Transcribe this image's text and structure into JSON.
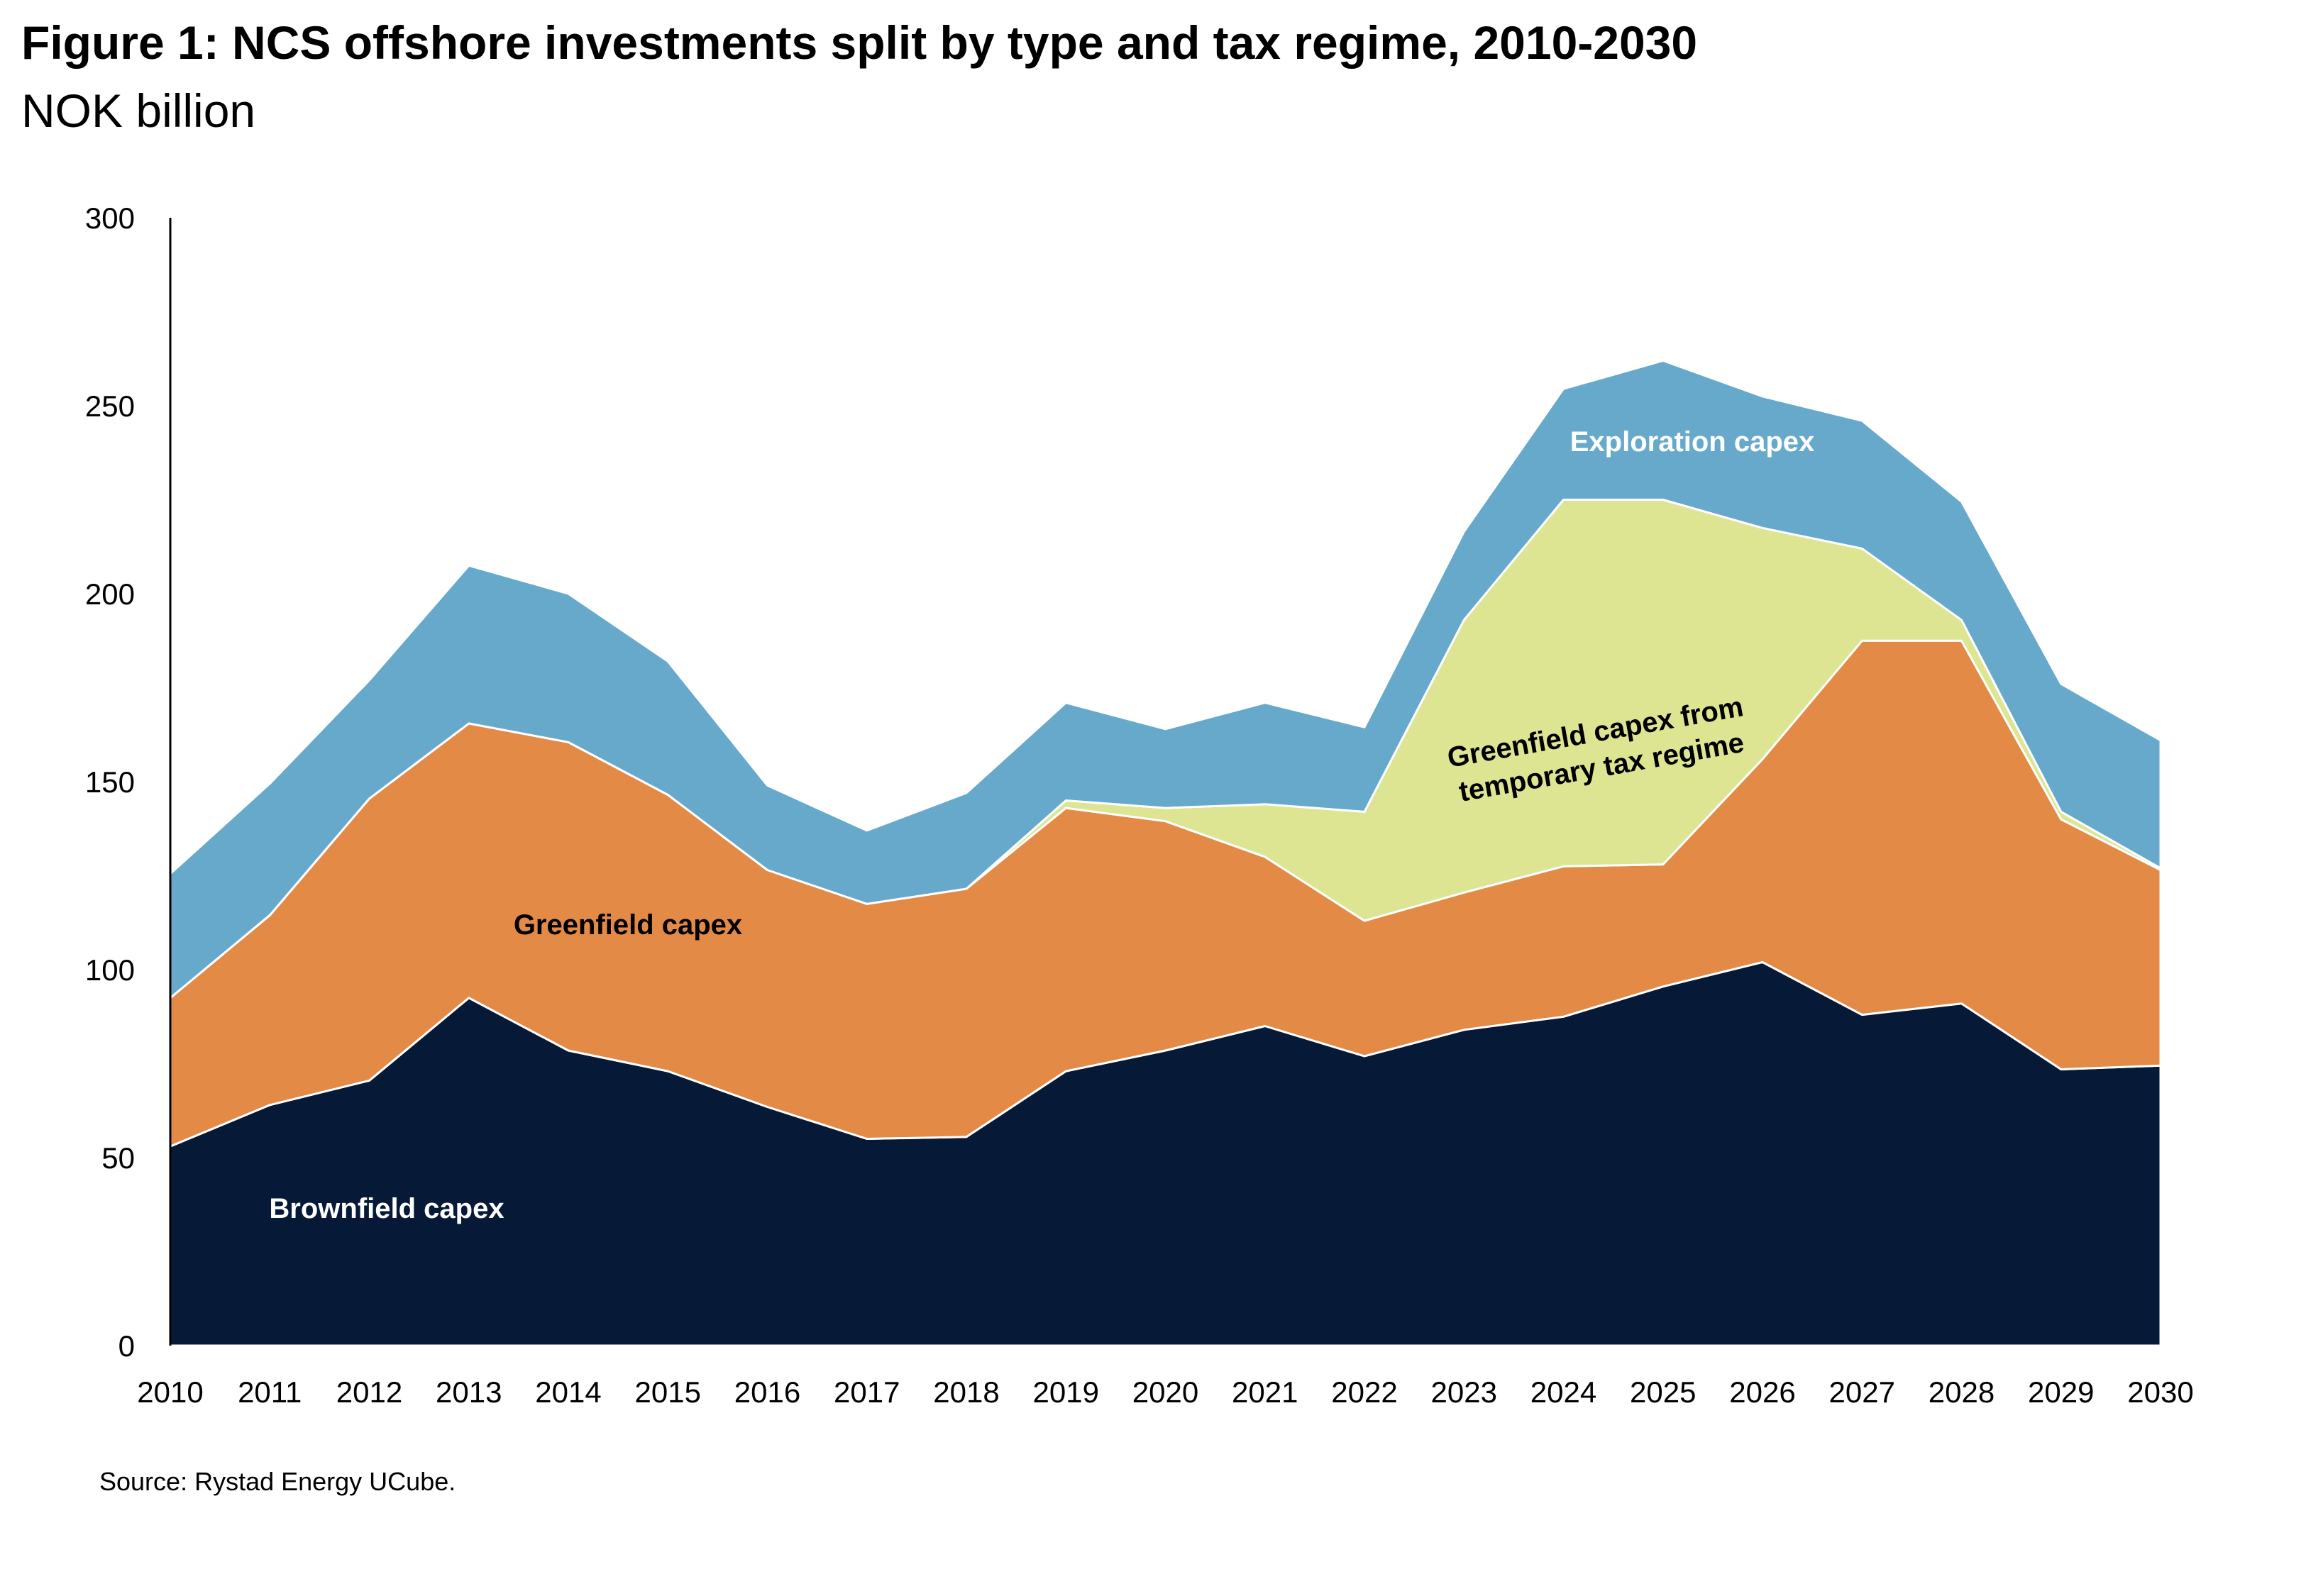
{
  "title": "Figure 1: NCS offshore investments split by type and tax regime, 2010-2030",
  "subtitle": "NOK billion",
  "source": "Source: Rystad Energy UCube.",
  "colors": {
    "brownfield": "#061a38",
    "greenfield": "#e48a47",
    "greenfield_temporary": "#dde593",
    "exploration": "#67a9cb"
  },
  "chart_data": {
    "type": "area",
    "stacked": true,
    "x": [
      "2010",
      "2011",
      "2012",
      "2013",
      "2014",
      "2015",
      "2016",
      "2017",
      "2018",
      "2019",
      "2020",
      "2021",
      "2022",
      "2023",
      "2024",
      "2025",
      "2026",
      "2027",
      "2028",
      "2029",
      "2030"
    ],
    "ylim": [
      0,
      300
    ],
    "yticks": [
      0,
      50,
      100,
      150,
      200,
      250,
      300
    ],
    "grid": false,
    "series": [
      {
        "name": "Brownfield capex",
        "label": "Brownfield capex",
        "color_key": "brownfield",
        "values": [
          53,
          64,
          70.5,
          92.5,
          78.5,
          73,
          63.5,
          55,
          55.5,
          73,
          78.5,
          85,
          77,
          84,
          87.5,
          95.5,
          102,
          88,
          91,
          73.5,
          74.5
        ]
      },
      {
        "name": "Greenfield capex",
        "label": "Greenfield capex",
        "color_key": "greenfield",
        "values": [
          39.5,
          50.5,
          75,
          73,
          82,
          73.5,
          63,
          62.5,
          66,
          70,
          61,
          45,
          36,
          36.5,
          40,
          32.5,
          54,
          99.5,
          96.5,
          66.5,
          52
        ]
      },
      {
        "name": "Greenfield capex from temporary tax regime",
        "label": "Greenfield capex from\ntemporary tax regime",
        "color_key": "greenfield_temporary",
        "values": [
          0,
          0,
          0,
          0,
          0,
          0,
          0,
          0,
          0,
          2,
          3.5,
          14,
          29,
          72.5,
          97.5,
          97,
          61.5,
          24.5,
          5.5,
          2,
          0.5
        ]
      },
      {
        "name": "Exploration capex",
        "label": "Exploration capex",
        "color_key": "exploration",
        "values": [
          33,
          35,
          31.5,
          42,
          39.5,
          35.5,
          22.5,
          19.5,
          25.5,
          26,
          21,
          27,
          22.5,
          23.5,
          29.5,
          37,
          35,
          34,
          31.5,
          34,
          34
        ]
      }
    ]
  }
}
